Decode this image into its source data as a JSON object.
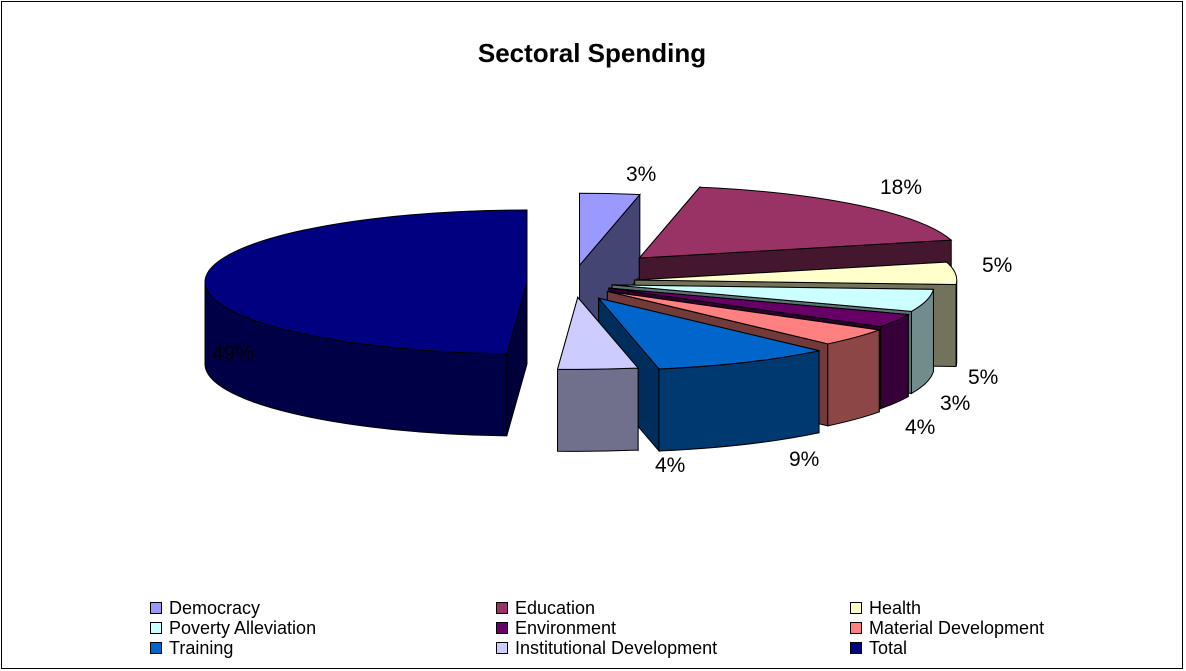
{
  "chart_data": {
    "type": "pie",
    "title": "Sectoral Spending",
    "slices": [
      {
        "label": "Democracy",
        "value": 3,
        "display": "3%",
        "color": "#9999ff",
        "exploded": true
      },
      {
        "label": "Education",
        "value": 18,
        "display": "18%",
        "color": "#993366",
        "exploded": true
      },
      {
        "label": "Health",
        "value": 5,
        "display": "5%",
        "color": "#ffffcc",
        "exploded": true
      },
      {
        "label": "Poverty Alleviation",
        "value": 5,
        "display": "5%",
        "color": "#ccffff",
        "exploded": true
      },
      {
        "label": "Environment",
        "value": 3,
        "display": "3%",
        "color": "#660066",
        "exploded": true
      },
      {
        "label": "Material Development",
        "value": 4,
        "display": "4%",
        "color": "#ff8080",
        "exploded": true
      },
      {
        "label": "Training",
        "value": 9,
        "display": "9%",
        "color": "#0066cc",
        "exploded": true
      },
      {
        "label": "Institutional Development",
        "value": 4,
        "display": "4%",
        "color": "#ccccff",
        "exploded": true
      },
      {
        "label": "Total",
        "value": 49,
        "display": "49%",
        "color": "#000080",
        "exploded": false
      }
    ],
    "legend_position": "bottom",
    "style": "3d-exploded"
  }
}
